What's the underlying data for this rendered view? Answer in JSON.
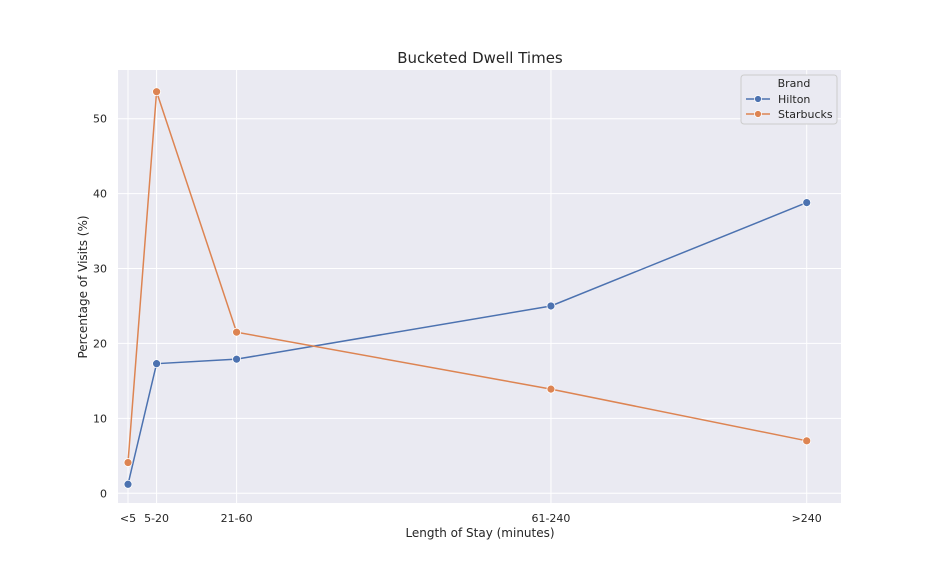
{
  "chart_data": {
    "type": "line",
    "title": "Bucketed Dwell Times",
    "xlabel": "Length of Stay (minutes)",
    "ylabel": "Percentage of Visits (%)",
    "x_ticks": [
      {
        "label": "<5",
        "x": 2.5
      },
      {
        "label": "5-20",
        "x": 12.5
      },
      {
        "label": "21-60",
        "x": 40.5
      },
      {
        "label": "61-240",
        "x": 150.5
      },
      {
        "label": ">240",
        "x": 240
      }
    ],
    "xlim": [
      -1,
      252
    ],
    "ylim": [
      -1.3,
      56.5
    ],
    "y_ticks": [
      0,
      10,
      20,
      30,
      40,
      50
    ],
    "grid": true,
    "legend": {
      "title": "Brand",
      "position": "top-right"
    },
    "series": [
      {
        "name": "Hilton",
        "color": "#4c72b0",
        "values": [
          1.2,
          17.3,
          17.9,
          25.0,
          38.8
        ]
      },
      {
        "name": "Starbucks",
        "color": "#dd8452",
        "values": [
          4.1,
          53.6,
          21.5,
          13.9,
          7.0
        ]
      }
    ]
  }
}
